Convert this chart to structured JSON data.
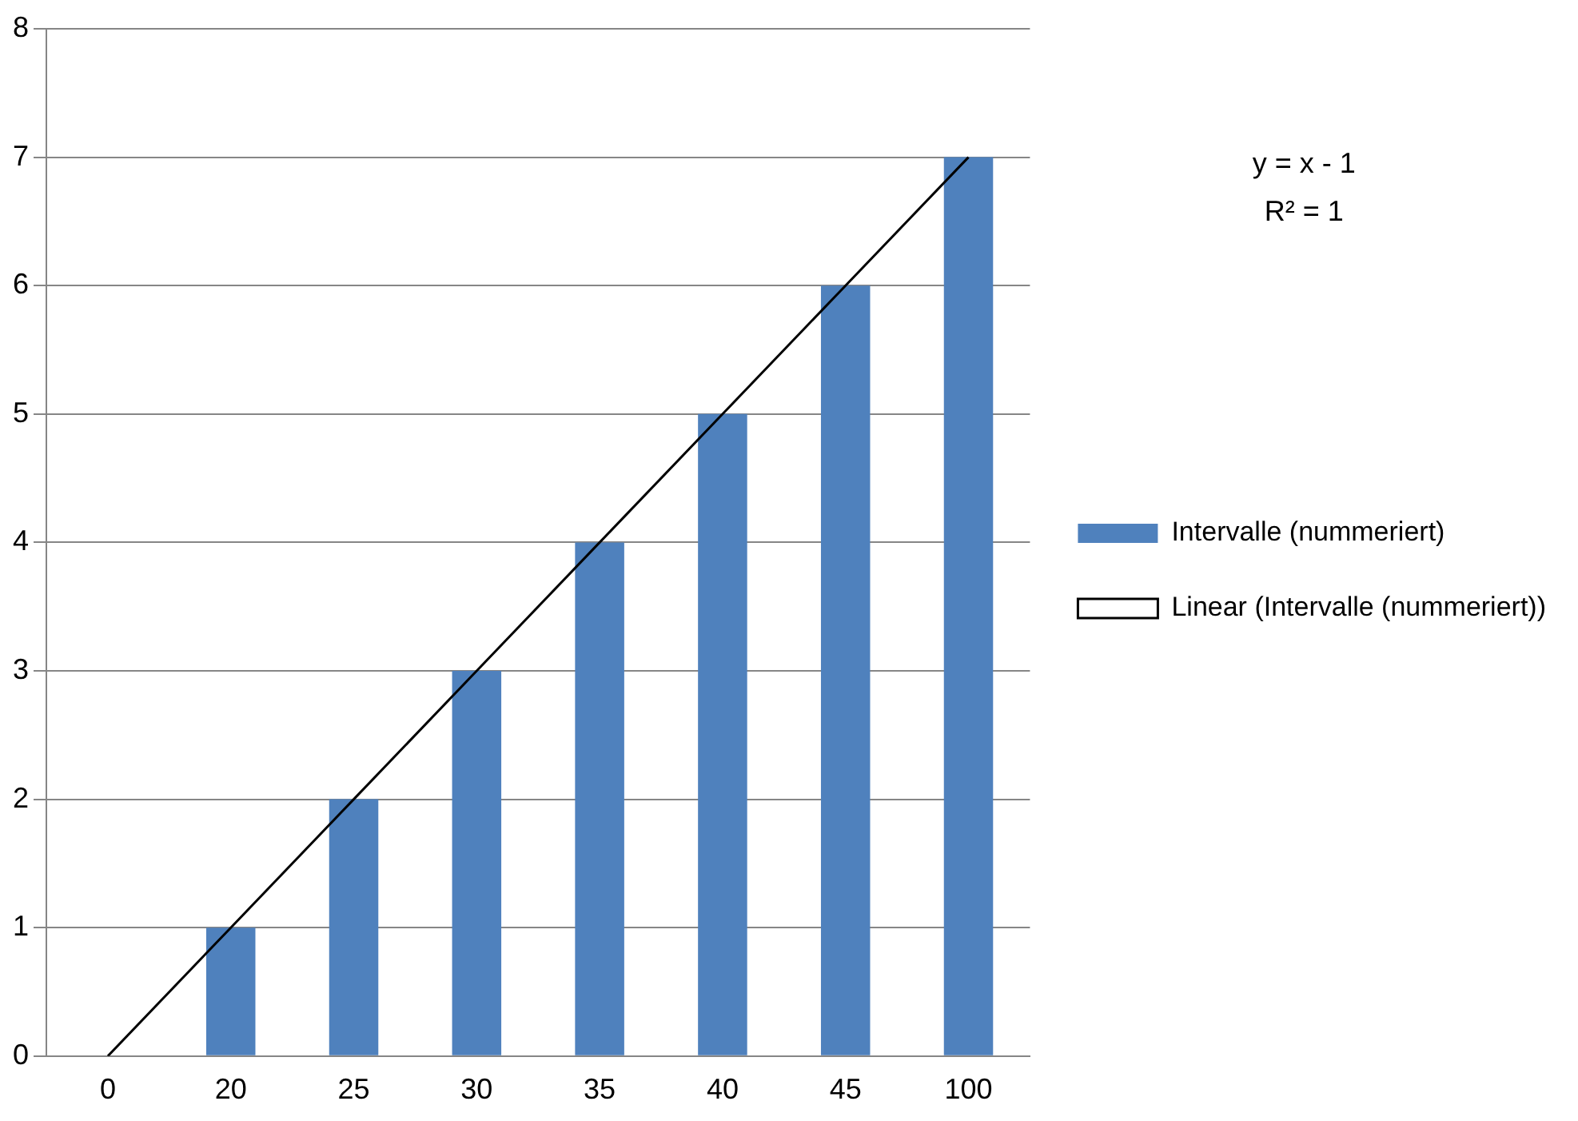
{
  "chart_data": {
    "type": "bar",
    "categories": [
      "0",
      "20",
      "25",
      "30",
      "35",
      "40",
      "45",
      "100"
    ],
    "series": [
      {
        "name": "Intervalle (nummeriert)",
        "color": "#4f81bd",
        "values": [
          0,
          1,
          2,
          3,
          4,
          5,
          6,
          7
        ]
      },
      {
        "name": "Linear (Intervalle (nummeriert))",
        "type": "line",
        "color": "#000000",
        "x": [
          "0",
          "20",
          "25",
          "30",
          "35",
          "40",
          "45",
          "100"
        ],
        "values": [
          0,
          1,
          2,
          3,
          4,
          5,
          6,
          7
        ]
      }
    ],
    "ylim": [
      0,
      8
    ],
    "yticks": [
      0,
      1,
      2,
      3,
      4,
      5,
      6,
      7,
      8
    ],
    "grid": "y",
    "legend": "right",
    "marker": "none",
    "line_style": "solid",
    "annotations": [
      "y = x - 1",
      "R² = 1"
    ]
  }
}
